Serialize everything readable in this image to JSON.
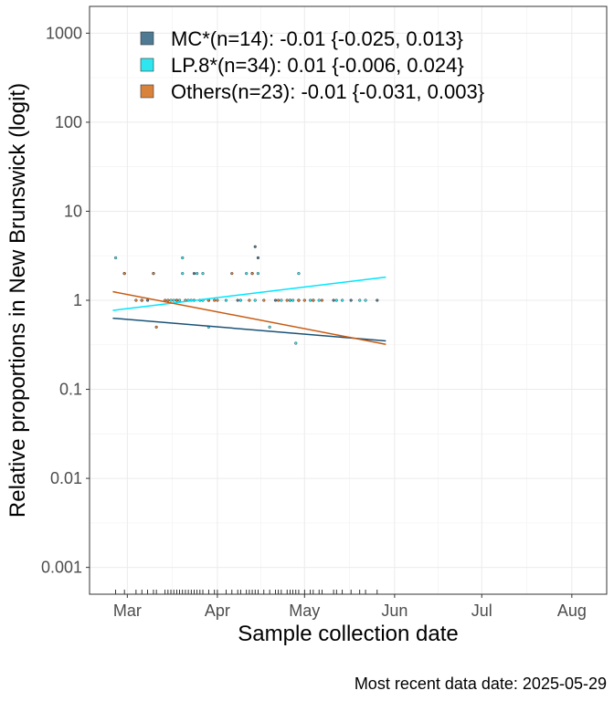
{
  "chart_data": {
    "type": "scatter",
    "ylabel": "Relative proportions in New Brunswick (logit)",
    "xlabel": "Sample collection date",
    "caption": "Most recent data date: 2025-05-29",
    "yscale": "log10",
    "ylim": [
      0.0005,
      2000
    ],
    "xlim": [
      "2025-02-16",
      "2025-08-13"
    ],
    "grid": true,
    "legend_position": "top-left",
    "y_ticks": [
      {
        "value": 0.001,
        "label": "0.001"
      },
      {
        "value": 0.01,
        "label": "0.01"
      },
      {
        "value": 0.1,
        "label": "0.1"
      },
      {
        "value": 1,
        "label": "1"
      },
      {
        "value": 10,
        "label": "10"
      },
      {
        "value": 100,
        "label": "100"
      },
      {
        "value": 1000,
        "label": "1000"
      }
    ],
    "x_ticks": [
      {
        "date": "2025-03-01",
        "label": "Mar"
      },
      {
        "date": "2025-04-01",
        "label": "Apr"
      },
      {
        "date": "2025-05-01",
        "label": "May"
      },
      {
        "date": "2025-06-01",
        "label": "Jun"
      },
      {
        "date": "2025-07-01",
        "label": "Jul"
      },
      {
        "date": "2025-08-01",
        "label": "Aug"
      }
    ],
    "series": [
      {
        "name": "MC*(n=14): -0.01 {-0.025, 0.013}",
        "color": "#1a5276",
        "fill": "#4f7a93",
        "fit": [
          {
            "date": "2025-02-24",
            "y": 0.63
          },
          {
            "date": "2025-05-29",
            "y": 0.35
          }
        ],
        "points": [
          {
            "date": "2025-02-28",
            "y": 2
          },
          {
            "date": "2025-03-08",
            "y": 1
          },
          {
            "date": "2025-03-18",
            "y": 1
          },
          {
            "date": "2025-03-24",
            "y": 2
          },
          {
            "date": "2025-04-08",
            "y": 1
          },
          {
            "date": "2025-04-14",
            "y": 4
          },
          {
            "date": "2025-04-15",
            "y": 3
          },
          {
            "date": "2025-04-21",
            "y": 1
          },
          {
            "date": "2025-04-26",
            "y": 1
          },
          {
            "date": "2025-04-29",
            "y": 1
          },
          {
            "date": "2025-05-04",
            "y": 1
          },
          {
            "date": "2025-05-11",
            "y": 1
          },
          {
            "date": "2025-05-17",
            "y": 1
          },
          {
            "date": "2025-05-26",
            "y": 1
          }
        ]
      },
      {
        "name": "LP.8*(n=34): 0.01 {-0.006, 0.024}",
        "color": "#00e5ff",
        "fill": "#2ee6f0",
        "fit": [
          {
            "date": "2025-02-24",
            "y": 0.77
          },
          {
            "date": "2025-05-29",
            "y": 1.82
          }
        ],
        "points": [
          {
            "date": "2025-02-25",
            "y": 3
          },
          {
            "date": "2025-03-06",
            "y": 1
          },
          {
            "date": "2025-03-10",
            "y": 2
          },
          {
            "date": "2025-03-16",
            "y": 1
          },
          {
            "date": "2025-03-17",
            "y": 1
          },
          {
            "date": "2025-03-19",
            "y": 1
          },
          {
            "date": "2025-03-20",
            "y": 2
          },
          {
            "date": "2025-03-20",
            "y": 3
          },
          {
            "date": "2025-03-22",
            "y": 1
          },
          {
            "date": "2025-03-25",
            "y": 2
          },
          {
            "date": "2025-03-26",
            "y": 1
          },
          {
            "date": "2025-03-27",
            "y": 1
          },
          {
            "date": "2025-03-27",
            "y": 2
          },
          {
            "date": "2025-03-29",
            "y": 1
          },
          {
            "date": "2025-03-29",
            "y": 0.5
          },
          {
            "date": "2025-04-04",
            "y": 1
          },
          {
            "date": "2025-04-11",
            "y": 2
          },
          {
            "date": "2025-04-13",
            "y": 2
          },
          {
            "date": "2025-04-14",
            "y": 1
          },
          {
            "date": "2025-04-15",
            "y": 2
          },
          {
            "date": "2025-04-19",
            "y": 0.5
          },
          {
            "date": "2025-04-23",
            "y": 1
          },
          {
            "date": "2025-04-26",
            "y": 1
          },
          {
            "date": "2025-04-27",
            "y": 1
          },
          {
            "date": "2025-04-28",
            "y": 0.33
          },
          {
            "date": "2025-04-29",
            "y": 2
          },
          {
            "date": "2025-05-03",
            "y": 1
          },
          {
            "date": "2025-05-06",
            "y": 1
          },
          {
            "date": "2025-05-12",
            "y": 1
          },
          {
            "date": "2025-05-14",
            "y": 1
          },
          {
            "date": "2025-05-20",
            "y": 1
          },
          {
            "date": "2025-05-22",
            "y": 1
          },
          {
            "date": "2025-04-09",
            "y": 1
          },
          {
            "date": "2025-03-23",
            "y": 1
          }
        ]
      },
      {
        "name": "Others(n=23): -0.01 {-0.031, 0.003}",
        "color": "#c85a10",
        "fill": "#d9823c",
        "fit": [
          {
            "date": "2025-02-24",
            "y": 1.25
          },
          {
            "date": "2025-05-29",
            "y": 0.32
          }
        ],
        "points": [
          {
            "date": "2025-02-28",
            "y": 2
          },
          {
            "date": "2025-03-04",
            "y": 1
          },
          {
            "date": "2025-03-06",
            "y": 1
          },
          {
            "date": "2025-03-10",
            "y": 2
          },
          {
            "date": "2025-03-11",
            "y": 0.5
          },
          {
            "date": "2025-03-14",
            "y": 1
          },
          {
            "date": "2025-03-18",
            "y": 1
          },
          {
            "date": "2025-03-21",
            "y": 1
          },
          {
            "date": "2025-03-24",
            "y": 1
          },
          {
            "date": "2025-03-29",
            "y": 1
          },
          {
            "date": "2025-03-31",
            "y": 1
          },
          {
            "date": "2025-04-06",
            "y": 2
          },
          {
            "date": "2025-04-12",
            "y": 1
          },
          {
            "date": "2025-04-13",
            "y": 2
          },
          {
            "date": "2025-04-17",
            "y": 1
          },
          {
            "date": "2025-04-22",
            "y": 1
          },
          {
            "date": "2025-04-25",
            "y": 1
          },
          {
            "date": "2025-05-01",
            "y": 1
          },
          {
            "date": "2025-05-04",
            "y": 1
          },
          {
            "date": "2025-05-07",
            "y": 1
          },
          {
            "date": "2025-04-01",
            "y": 1
          },
          {
            "date": "2025-03-15",
            "y": 1
          },
          {
            "date": "2025-04-29",
            "y": 1
          }
        ]
      }
    ]
  }
}
